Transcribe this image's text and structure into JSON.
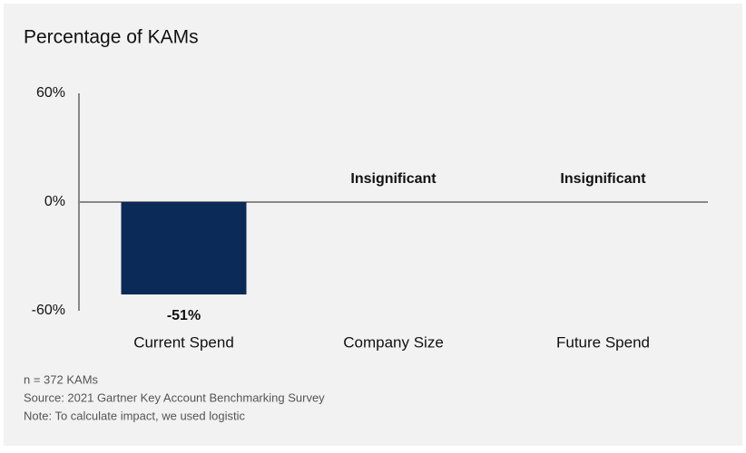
{
  "chart_data": {
    "type": "bar",
    "title": "Percentage of KAMs",
    "categories": [
      "Current Spend",
      "Company Size",
      "Future Spend"
    ],
    "values": [
      -51,
      null,
      null
    ],
    "value_labels": [
      "-51%",
      "Insignificant",
      "Insignificant"
    ],
    "color": "#0b2a57",
    "ylim": [
      -60,
      60
    ],
    "yticks": [
      {
        "value": -60,
        "label": "-60%"
      },
      {
        "value": 0,
        "label": "0%"
      },
      {
        "value": 60,
        "label": "60%"
      }
    ],
    "grid": false,
    "footnotes": [
      "n = 372 KAMs",
      "Source: 2021 Gartner Key Account Benchmarking Survey",
      "Note: To calculate impact, we used logistic"
    ]
  }
}
